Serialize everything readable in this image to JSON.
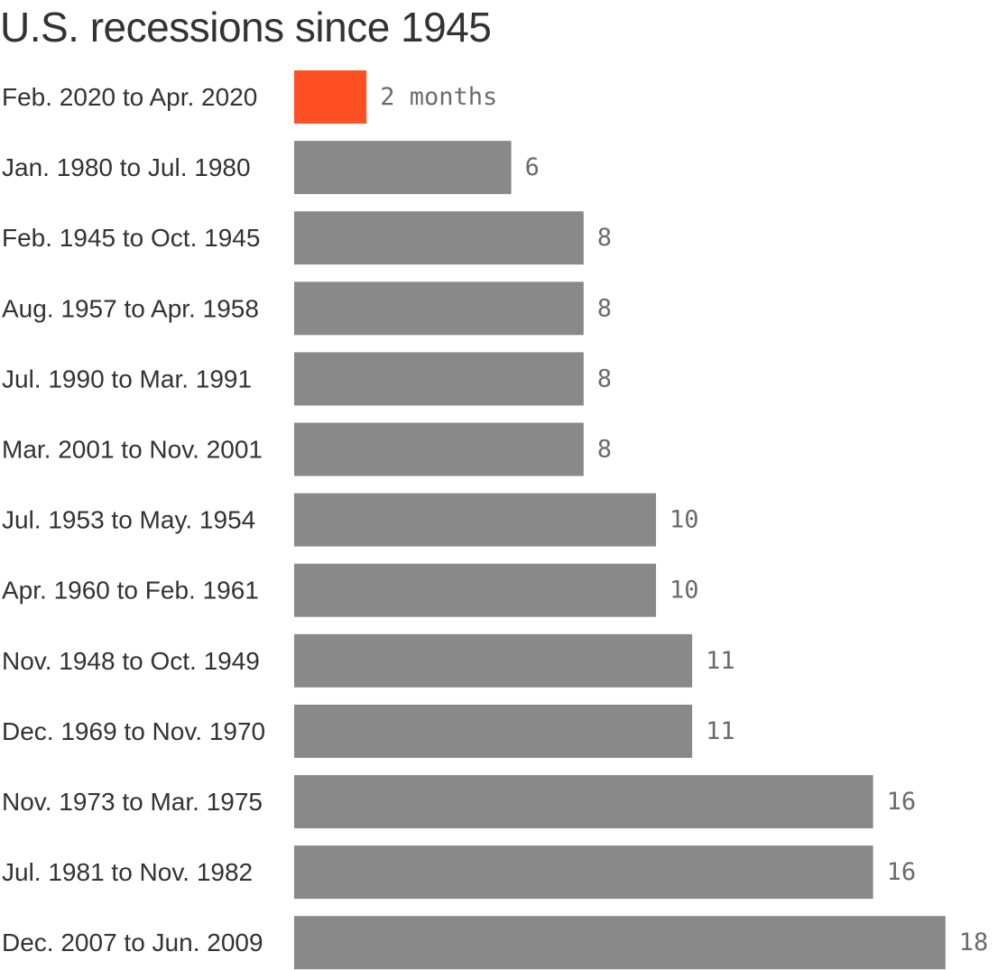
{
  "colors": {
    "highlight": "#ff5023",
    "bar": "#898989",
    "text": "#333333",
    "value_text": "#6b6b6b"
  },
  "chart_data": {
    "type": "bar",
    "orientation": "horizontal",
    "title": "U.S. recessions since 1945",
    "value_unit": "months",
    "categories": [
      "Feb. 2020 to Apr. 2020",
      "Jan. 1980 to Jul. 1980",
      "Feb. 1945 to Oct. 1945",
      "Aug. 1957 to Apr. 1958",
      "Jul. 1990 to Mar. 1991",
      "Mar. 2001 to Nov. 2001",
      "Jul. 1953 to May. 1954",
      "Apr. 1960 to Feb. 1961",
      "Nov. 1948 to Oct. 1949",
      "Dec. 1969 to Nov. 1970",
      "Nov. 1973 to Mar. 1975",
      "Jul. 1981 to Nov. 1982",
      "Dec. 2007 to Jun. 2009"
    ],
    "values": [
      2,
      6,
      8,
      8,
      8,
      8,
      10,
      10,
      11,
      11,
      16,
      16,
      18
    ],
    "value_labels": [
      "2 months",
      "6",
      "8",
      "8",
      "8",
      "8",
      "10",
      "10",
      "11",
      "11",
      "16",
      "16",
      "18"
    ],
    "highlight_index": 0,
    "xlim": [
      0,
      18
    ],
    "grid": false,
    "legend": "none"
  }
}
